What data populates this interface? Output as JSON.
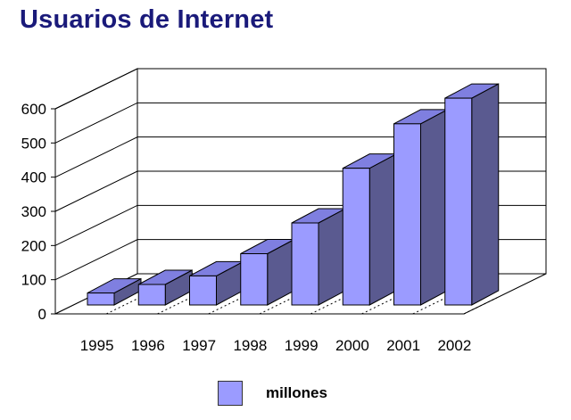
{
  "chart_data": {
    "type": "bar",
    "title": "Usuarios de Internet",
    "categories": [
      "1995",
      "1996",
      "1997",
      "1998",
      "1999",
      "2000",
      "2001",
      "2002"
    ],
    "series": [
      {
        "name": "millones",
        "values": [
          35,
          60,
          85,
          150,
          240,
          400,
          530,
          605
        ]
      }
    ],
    "ylim": [
      0,
      600
    ],
    "yticks": [
      "0",
      "100",
      "200",
      "300",
      "400",
      "500",
      "600"
    ],
    "grid": true,
    "legend": "bottom",
    "colors": {
      "bar_front": "#9b9bff",
      "bar_top": "#7f7fe0",
      "bar_side": "#5a5a90",
      "title": "#1a1a7a"
    }
  }
}
